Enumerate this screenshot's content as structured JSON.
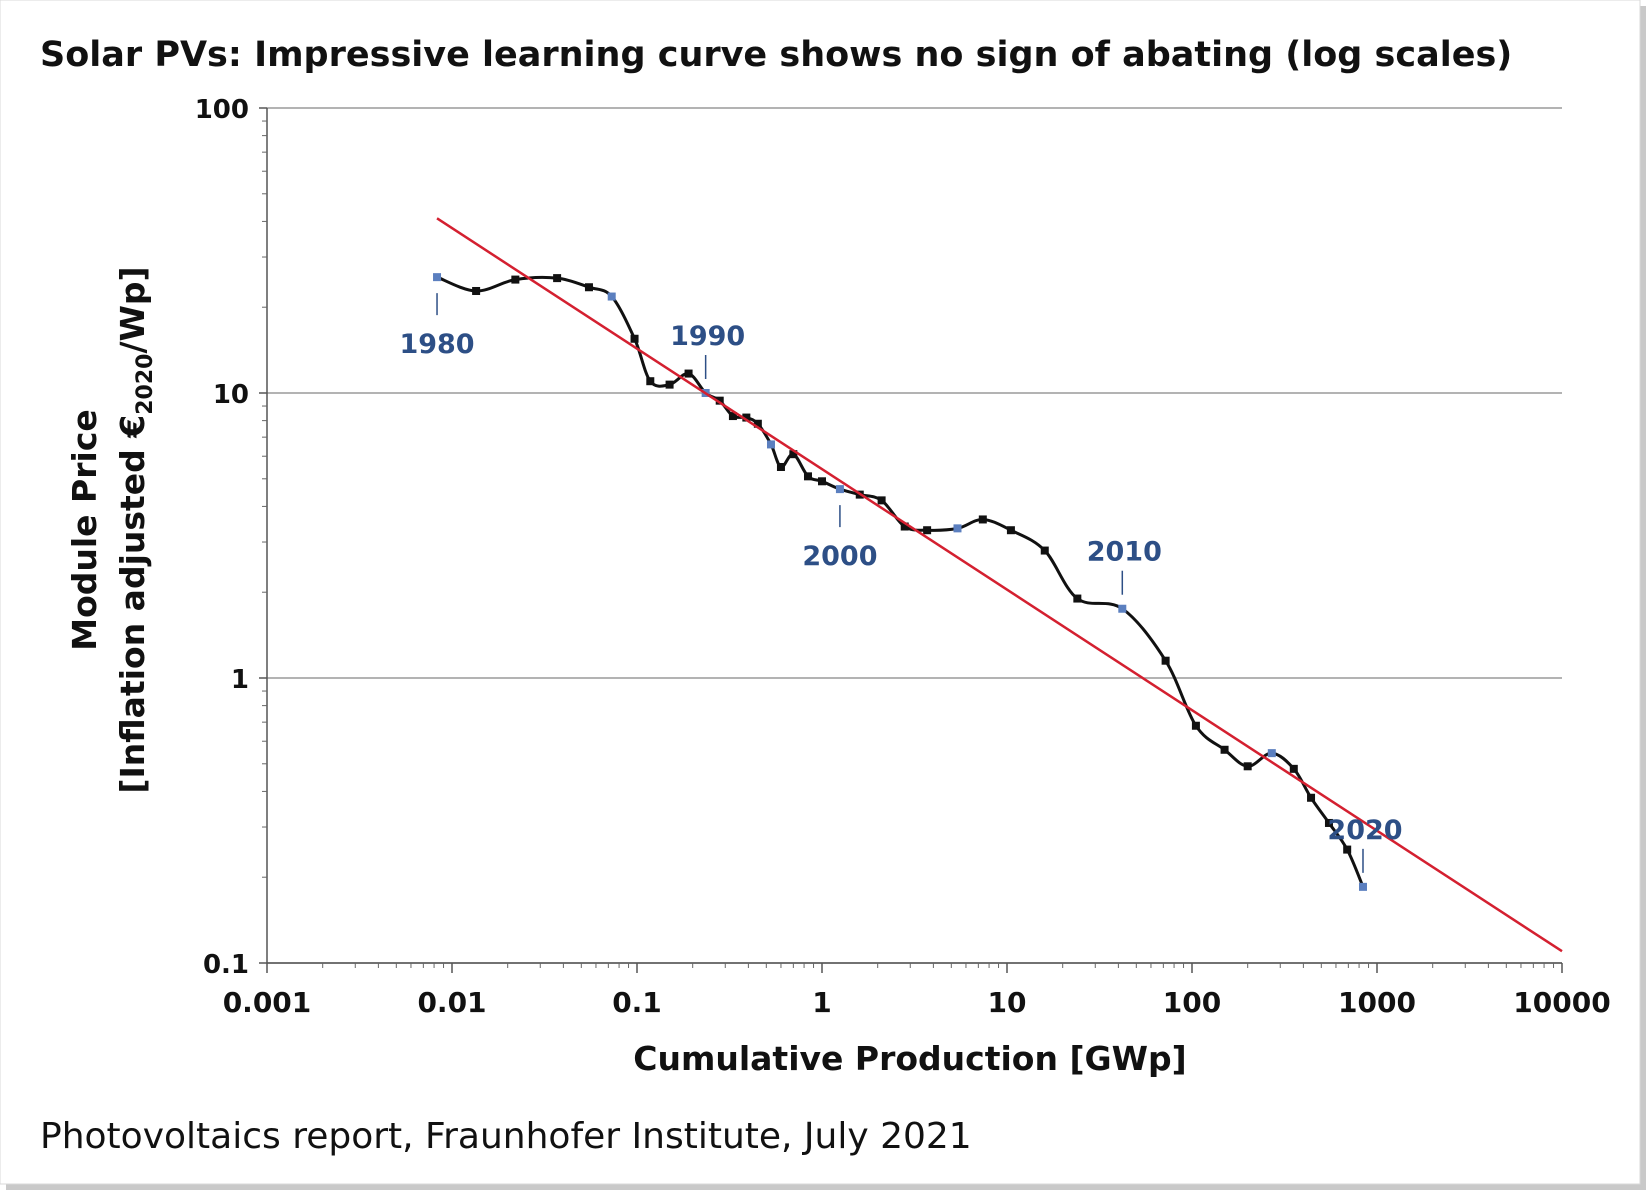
{
  "chart_data": {
    "type": "line",
    "title": "Solar PVs: Impressive learning curve shows no sign of abating (log scales)",
    "xlabel": "Cumulative Production [GWp]",
    "ylabel_line1": "Module Price",
    "ylabel_line2_pre": "[Inflation adjusted €",
    "ylabel_sub": "2020",
    "ylabel_line2_post": "/Wp]",
    "x_scale": "log",
    "y_scale": "log",
    "xlim": [
      0.001,
      10000
    ],
    "ylim": [
      0.1,
      100
    ],
    "x_ticks": [
      "0.001",
      "0.01",
      "0.1",
      "1",
      "10",
      "100",
      "1000",
      "10000"
    ],
    "y_ticks": [
      "100",
      "10",
      "1",
      "0.1"
    ],
    "grid": "horizontal",
    "series": [
      {
        "color": "#111111",
        "points": [
          [
            0.0083,
            25.5
          ],
          [
            0.0135,
            22.8
          ],
          [
            0.022,
            25.0
          ],
          [
            0.037,
            25.3
          ],
          [
            0.055,
            23.5
          ],
          [
            0.073,
            21.8
          ],
          [
            0.097,
            15.5
          ],
          [
            0.118,
            11.0
          ],
          [
            0.15,
            10.7
          ],
          [
            0.19,
            11.7
          ],
          [
            0.235,
            10.0
          ],
          [
            0.28,
            9.4
          ],
          [
            0.33,
            8.3
          ],
          [
            0.39,
            8.2
          ],
          [
            0.45,
            7.8
          ],
          [
            0.53,
            6.6
          ],
          [
            0.6,
            5.5
          ],
          [
            0.7,
            6.1
          ],
          [
            0.84,
            5.1
          ],
          [
            1.0,
            4.9
          ],
          [
            1.25,
            4.6
          ],
          [
            1.6,
            4.4
          ],
          [
            2.1,
            4.2
          ],
          [
            2.8,
            3.4
          ],
          [
            3.7,
            3.3
          ],
          [
            5.4,
            3.35
          ],
          [
            7.4,
            3.6
          ],
          [
            10.5,
            3.3
          ],
          [
            16,
            2.8
          ],
          [
            24,
            1.9
          ],
          [
            42,
            1.75
          ],
          [
            72,
            1.15
          ],
          [
            105,
            0.68
          ],
          [
            150,
            0.56
          ],
          [
            200,
            0.49
          ],
          [
            270,
            0.545
          ],
          [
            355,
            0.48
          ],
          [
            440,
            0.38
          ],
          [
            550,
            0.31
          ],
          [
            690,
            0.25
          ],
          [
            840,
            0.185
          ]
        ],
        "highlighted_color": "#5b7fbf",
        "highlighted_points": [
          [
            0.0083,
            25.5
          ],
          [
            0.073,
            21.8
          ],
          [
            0.235,
            10.0
          ],
          [
            0.53,
            6.6
          ],
          [
            1.25,
            4.6
          ],
          [
            5.4,
            3.35
          ],
          [
            42,
            1.75
          ],
          [
            270,
            0.545
          ],
          [
            840,
            0.185
          ]
        ]
      },
      {
        "type": "trend",
        "color": "#d42030",
        "points": [
          [
            0.0083,
            41
          ],
          [
            10000,
            0.11
          ]
        ]
      }
    ],
    "annotations": [
      {
        "text": "1980",
        "x": 0.0083,
        "y": 25.5,
        "place": "below"
      },
      {
        "text": "1990",
        "x": 0.235,
        "y": 10.0,
        "place": "above"
      },
      {
        "text": "2000",
        "x": 1.25,
        "y": 4.6,
        "place": "below"
      },
      {
        "text": "2010",
        "x": 42,
        "y": 1.75,
        "place": "above"
      },
      {
        "text": "2020",
        "x": 840,
        "y": 0.185,
        "place": "above"
      }
    ]
  },
  "caption": "Photovoltaics report, Fraunhofer Institute, July 2021"
}
